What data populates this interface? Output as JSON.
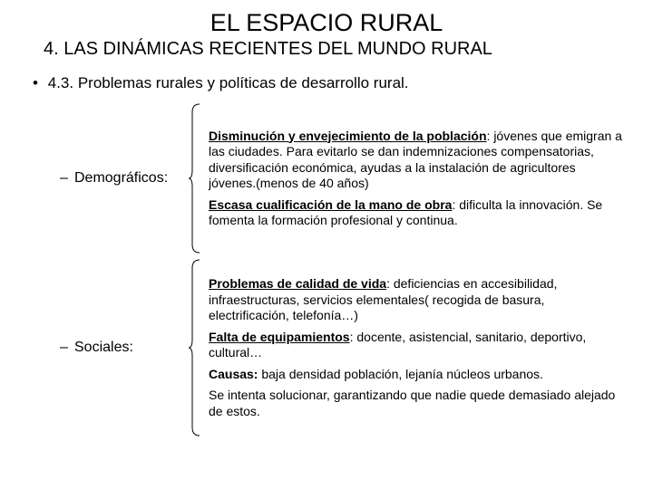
{
  "colors": {
    "text": "#000000",
    "background": "#ffffff",
    "brace": "#000000"
  },
  "fontsizes": {
    "title": 27,
    "subtitle": 20,
    "level1": 17,
    "label": 16,
    "body": 14
  },
  "title": "EL ESPACIO RURAL",
  "subtitle": "4. LAS DINÁMICAS RECIENTES DEL MUNDO RURAL",
  "section": "4.3. Problemas rurales y políticas de desarrollo rural.",
  "groups": [
    {
      "label": "Demográficos:",
      "brace_height": 166,
      "items": [
        {
          "bold": "Disminución y envejecimiento de la población",
          "underline_bold": true,
          "colon_after_bold": true,
          "rest": "jóvenes que emigran a las ciudades. Para evitarlo se dan indemnizaciones compensatorias, diversificación económica, ayudas a la instalación de agricultores jóvenes.(menos de 40 años)"
        },
        {
          "bold": "Escasa cualificación de la mano de obra",
          "underline_bold": true,
          "colon_after_bold": true,
          "rest": "dificulta la innovación. Se fomenta la formación profesional y continua."
        }
      ]
    },
    {
      "label": "Sociales:",
      "brace_height": 196,
      "items": [
        {
          "bold": "Problemas de calidad de vida",
          "underline_bold": true,
          "colon_after_bold": true,
          "rest": "deficiencias en accesibilidad, infraestructuras, servicios elementales( recogida de basura, electrificación, telefonía…)"
        },
        {
          "bold": "Falta de equipamientos",
          "underline_bold": true,
          "colon_after_bold": true,
          "rest": "docente, asistencial, sanitario, deportivo, cultural…"
        },
        {
          "bold": "Causas:",
          "underline_bold": false,
          "colon_after_bold": false,
          "rest": "baja densidad población, lejanía núcleos urbanos."
        },
        {
          "bold": "",
          "underline_bold": false,
          "colon_after_bold": false,
          "rest": "Se intenta solucionar, garantizando que nadie quede demasiado alejado de estos."
        }
      ]
    }
  ]
}
